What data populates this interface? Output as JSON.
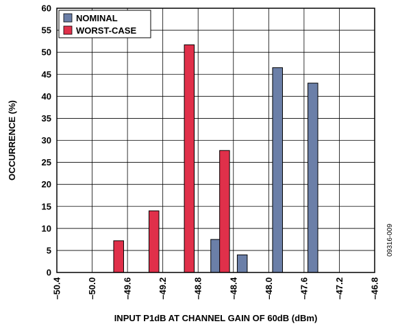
{
  "chart_data": {
    "type": "bar",
    "xlabel": "INPUT P1dB AT CHANNEL GAIN OF 60dB (dBm)",
    "ylabel": "OCCURRENCE (%)",
    "xlim": [
      -50.4,
      -46.8
    ],
    "ylim": [
      0,
      60
    ],
    "x_ticks": [
      -50.4,
      -50.0,
      -49.6,
      -49.2,
      -48.8,
      -48.4,
      -48.0,
      -47.6,
      -47.2,
      -46.8
    ],
    "x_tick_labels": [
      "–50.4",
      "–50.0",
      "–49.6",
      "–49.2",
      "–48.8",
      "–48.4",
      "–48.0",
      "–47.6",
      "–47.2",
      "–46.8"
    ],
    "y_ticks": [
      0,
      5,
      10,
      15,
      20,
      25,
      30,
      35,
      40,
      45,
      50,
      55,
      60
    ],
    "y_tick_labels": [
      "0",
      "5",
      "10",
      "15",
      "20",
      "25",
      "30",
      "35",
      "40",
      "45",
      "50",
      "55",
      "60"
    ],
    "grid": true,
    "legend_position": "top-left",
    "series": [
      {
        "name": "NOMINAL",
        "color": "#6b7fa8",
        "x": [
          -48.6,
          -48.3,
          -47.9,
          -47.5
        ],
        "values": [
          7.5,
          4.0,
          46.5,
          43.0
        ]
      },
      {
        "name": "WORST-CASE",
        "color": "#e0304a",
        "x": [
          -49.7,
          -49.3,
          -48.9,
          -48.5
        ],
        "values": [
          7.2,
          14.0,
          51.7,
          27.7
        ]
      }
    ],
    "figure_id": "09316-009"
  }
}
